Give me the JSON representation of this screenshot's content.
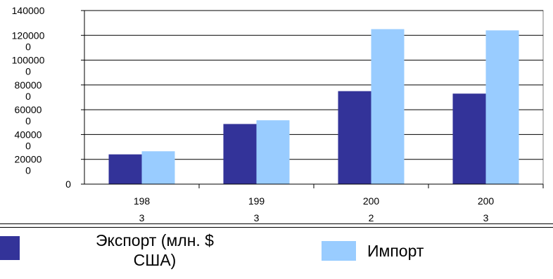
{
  "chart_data": {
    "type": "bar",
    "categories": [
      "198\n3",
      "199\n3",
      "200\n2",
      "200\n3"
    ],
    "series": [
      {
        "name": "Экспорт (млн. $ США)",
        "color": "#333399",
        "values": [
          24000,
          48500,
          75000,
          73000
        ]
      },
      {
        "name": "Импорт",
        "color": "#99ccff",
        "values": [
          26500,
          51500,
          125000,
          124000
        ]
      }
    ],
    "y_ticks": [
      "140000",
      "120000\n0",
      "100000\n0",
      "80000\n0",
      "60000\n0",
      "40000\n0",
      "20000\n0",
      "0"
    ],
    "ylim": [
      0,
      140000
    ],
    "grid": true,
    "legend": "bottom"
  },
  "legend": {
    "export_label": "Экспорт (млн. $\nСША)",
    "import_label": "Импорт"
  }
}
